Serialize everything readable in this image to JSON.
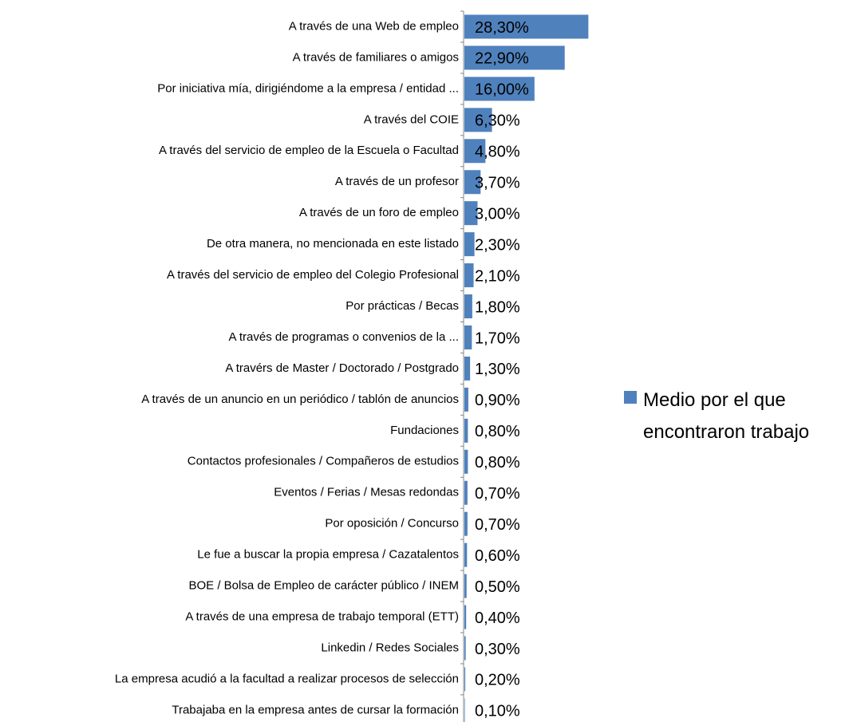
{
  "chart_data": {
    "type": "bar",
    "orientation": "horizontal",
    "categories": [
      "A través de una Web de empleo",
      "A través de familiares o amigos",
      "Por iniciativa mía, dirigiéndome a la empresa / entidad ...",
      "A través del COIE",
      "A través del servicio de empleo de la Escuela o Facultad",
      "A través de un profesor",
      "A través de un foro de empleo",
      "De otra manera, no mencionada en este listado",
      "A través del servicio de empleo del Colegio Profesional",
      "Por prácticas / Becas",
      "A través de programas o convenios de la ...",
      "A travérs de Master / Doctorado / Postgrado",
      "A través de un anuncio en un periódico / tablón de anuncios",
      "Fundaciones",
      "Contactos profesionales / Compañeros de estudios",
      "Eventos / Ferias / Mesas redondas",
      "Por oposición / Concurso",
      "Le fue a buscar la propia empresa / Cazatalentos",
      "BOE / Bolsa de Empleo de carácter público / INEM",
      "A través de una empresa de trabajo temporal (ETT)",
      "Linkedin / Redes Sociales",
      "La empresa acudió a la facultad a realizar procesos de selección",
      "Trabajaba en la empresa antes de cursar la formación"
    ],
    "series": [
      {
        "name": "Medio por el que encontraron trabajo",
        "color": "#4f81bd",
        "values": [
          28.3,
          22.9,
          16.0,
          6.3,
          4.8,
          3.7,
          3.0,
          2.3,
          2.1,
          1.8,
          1.7,
          1.3,
          0.9,
          0.8,
          0.8,
          0.7,
          0.7,
          0.6,
          0.5,
          0.4,
          0.3,
          0.2,
          0.1
        ],
        "value_labels": [
          "28,30%",
          "22,90%",
          "16,00%",
          "6,30%",
          "4,80%",
          "3,70%",
          "3,00%",
          "2,30%",
          "2,10%",
          "1,80%",
          "1,70%",
          "1,30%",
          "0,90%",
          "0,80%",
          "0,80%",
          "0,70%",
          "0,70%",
          "0,60%",
          "0,50%",
          "0,40%",
          "0,30%",
          "0,20%",
          "0,10%"
        ]
      }
    ],
    "legend": "right"
  }
}
